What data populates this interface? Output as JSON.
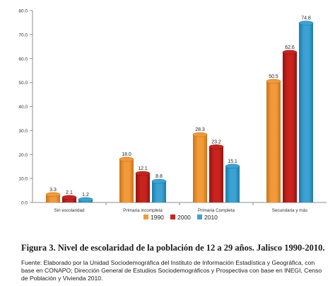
{
  "chart_data": {
    "type": "bar",
    "title": "",
    "xlabel": "",
    "ylabel": "",
    "categories": [
      "Sin escolaridad",
      "Primaria incompleta",
      "Primaria Completa",
      "Secundaria y más"
    ],
    "series": [
      {
        "name": "1990",
        "values": [
          3.3,
          18.0,
          28.3,
          50.5
        ]
      },
      {
        "name": "2000",
        "values": [
          2.1,
          12.1,
          23.2,
          62.6
        ]
      },
      {
        "name": "2010",
        "values": [
          1.2,
          8.8,
          15.1,
          74.8
        ]
      }
    ],
    "value_labels": [
      [
        "3.3",
        "18.0",
        "28.3",
        "50.5"
      ],
      [
        "2.1",
        "12.1",
        "23.2",
        "62.6"
      ],
      [
        "1.2",
        "8.8",
        "15.1",
        "74.8"
      ]
    ],
    "ylim": [
      0,
      80
    ],
    "yticks": [
      "0.0",
      "10.0",
      "20.0",
      "30.0",
      "40.0",
      "50.0",
      "60.0",
      "70.0",
      "80.0"
    ],
    "grid": false,
    "legend_position": "bottom",
    "colors": [
      "#f39a38",
      "#c9231e",
      "#3aa3d4"
    ],
    "dark_colors": [
      "#c8741c",
      "#921410",
      "#1f7aa6"
    ]
  },
  "caption": "Figura 3. Nivel de escolaridad de la población de 12 a 29 años. Jalisco 1990-2010.",
  "source": "Fuente: Elaborado por la Unidad Sociodemográfica del Instituto de Información Estadística y Geográfica, con base en CONAPO; Dirección General de Estudios Sociodemográficos y Prospectiva con base en INEGI, Censo de Población y Vivienda 2010."
}
